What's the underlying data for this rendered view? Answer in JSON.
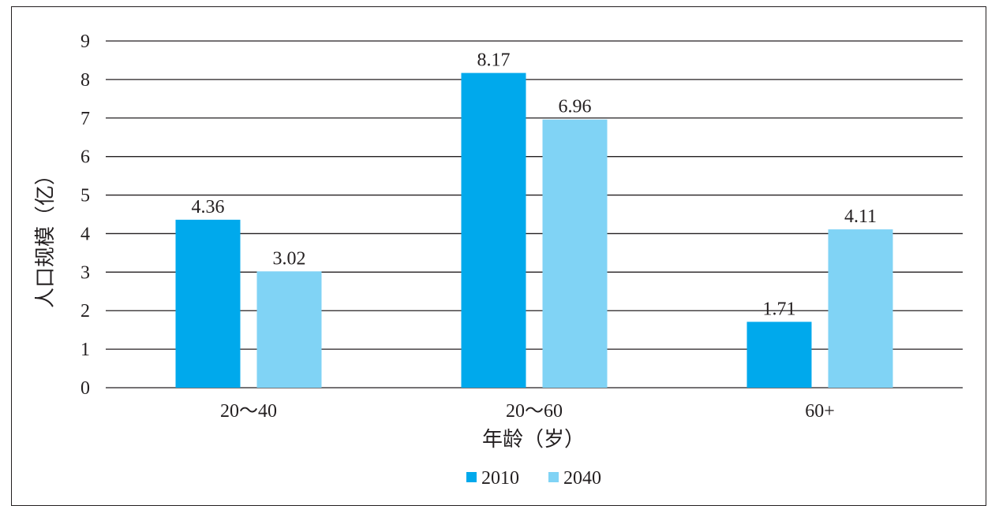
{
  "chart_data": {
    "type": "bar",
    "title": "",
    "xlabel": "年龄（岁）",
    "ylabel": "人口规模（亿）",
    "categories": [
      "20～40",
      "20～60",
      "60+"
    ],
    "series": [
      {
        "name": "2010",
        "values": [
          4.36,
          8.17,
          1.71
        ],
        "labels": [
          "4.36",
          "8.17",
          "1.71"
        ],
        "color": "#00a9ec"
      },
      {
        "name": "2040",
        "values": [
          3.02,
          6.96,
          4.11
        ],
        "labels": [
          "3.02",
          "6.96",
          "4.11"
        ],
        "color": "#80d3f5"
      }
    ],
    "ylim": [
      0,
      9
    ],
    "yticks": [
      "0",
      "1",
      "2",
      "3",
      "4",
      "5",
      "6",
      "7",
      "8",
      "9"
    ],
    "grid": true,
    "legend_position": "bottom-center"
  }
}
